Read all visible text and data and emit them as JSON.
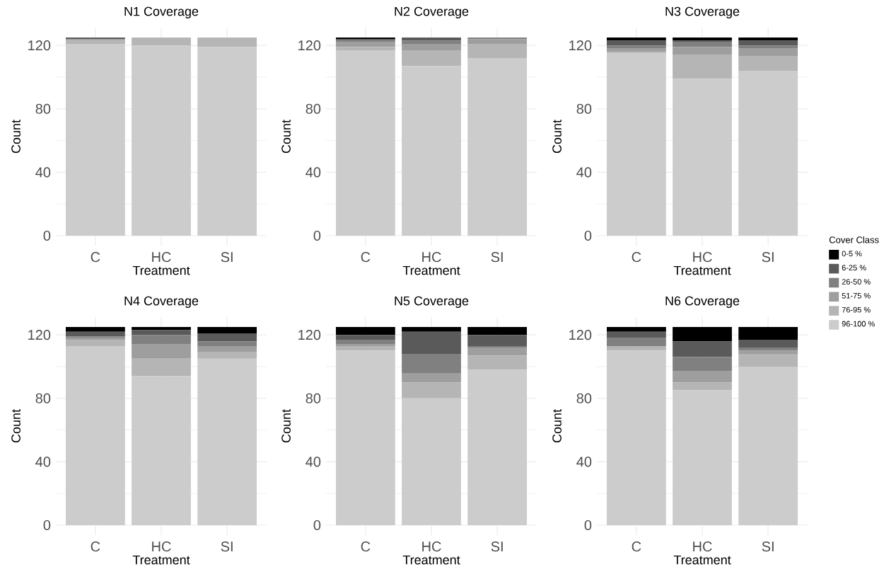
{
  "chart_data": [
    {
      "type": "bar",
      "stacked": true,
      "title": "N1 Coverage",
      "xlabel": "Treatment",
      "ylabel": "Count",
      "categories": [
        "C",
        "HC",
        "SI"
      ],
      "ylim": [
        -6.25,
        131.25
      ],
      "yticks": [
        0,
        40,
        80,
        120
      ],
      "grid": true,
      "series": [
        {
          "color": "#cccccc",
          "values": [
            121,
            120,
            119
          ]
        },
        {
          "color": "#b5b5b5",
          "values": [
            2,
            5,
            6
          ]
        },
        {
          "color": "#9e9e9e",
          "values": [
            1,
            0,
            0
          ]
        },
        {
          "color": "#808080",
          "values": [
            0,
            0,
            0
          ]
        },
        {
          "color": "#5a5a5a",
          "values": [
            1,
            0,
            0
          ]
        },
        {
          "color": "#000000",
          "values": [
            0,
            0,
            0
          ]
        }
      ]
    },
    {
      "type": "bar",
      "stacked": true,
      "title": "N2 Coverage",
      "xlabel": "Treatment",
      "ylabel": "Count",
      "categories": [
        "C",
        "HC",
        "SI"
      ],
      "ylim": [
        -6.25,
        131.25
      ],
      "yticks": [
        0,
        40,
        80,
        120
      ],
      "grid": true,
      "series": [
        {
          "color": "#cccccc",
          "values": [
            117,
            107,
            112
          ]
        },
        {
          "color": "#b5b5b5",
          "values": [
            2,
            10,
            9
          ]
        },
        {
          "color": "#9e9e9e",
          "values": [
            3,
            4,
            3
          ]
        },
        {
          "color": "#808080",
          "values": [
            1,
            2,
            1
          ]
        },
        {
          "color": "#5a5a5a",
          "values": [
            1,
            2,
            0
          ]
        },
        {
          "color": "#000000",
          "values": [
            1,
            0,
            0
          ]
        }
      ]
    },
    {
      "type": "bar",
      "stacked": true,
      "title": "N3 Coverage",
      "xlabel": "Treatment",
      "ylabel": "Count",
      "categories": [
        "C",
        "HC",
        "SI"
      ],
      "ylim": [
        -6.25,
        131.25
      ],
      "yticks": [
        0,
        40,
        80,
        120
      ],
      "grid": true,
      "legend": "right",
      "legend_title": "Cover Class",
      "series": [
        {
          "name": "96-100 %",
          "color": "#cccccc",
          "values": [
            115,
            99,
            104
          ]
        },
        {
          "name": "76-95 %",
          "color": "#b5b5b5",
          "values": [
            1,
            15,
            9
          ]
        },
        {
          "name": "51-75 %",
          "color": "#9e9e9e",
          "values": [
            2,
            5,
            5
          ]
        },
        {
          "name": "26-50 %",
          "color": "#808080",
          "values": [
            2,
            3,
            2
          ]
        },
        {
          "name": "6-25 %",
          "color": "#5a5a5a",
          "values": [
            3,
            1,
            3
          ]
        },
        {
          "name": "0-5 %",
          "color": "#000000",
          "values": [
            2,
            2,
            2
          ]
        }
      ]
    },
    {
      "type": "bar",
      "stacked": true,
      "title": "N4 Coverage",
      "xlabel": "Treatment",
      "ylabel": "Count",
      "categories": [
        "C",
        "HC",
        "SI"
      ],
      "ylim": [
        -6.25,
        131.25
      ],
      "yticks": [
        0,
        40,
        80,
        120
      ],
      "grid": true,
      "series": [
        {
          "color": "#cccccc",
          "values": [
            113,
            94,
            105
          ]
        },
        {
          "color": "#b5b5b5",
          "values": [
            4,
            11,
            4
          ]
        },
        {
          "color": "#9e9e9e",
          "values": [
            1,
            9,
            4
          ]
        },
        {
          "color": "#808080",
          "values": [
            1,
            6,
            3
          ]
        },
        {
          "color": "#5a5a5a",
          "values": [
            3,
            3,
            5
          ]
        },
        {
          "color": "#000000",
          "values": [
            3,
            2,
            4
          ]
        }
      ]
    },
    {
      "type": "bar",
      "stacked": true,
      "title": "N5 Coverage",
      "xlabel": "Treatment",
      "ylabel": "Count",
      "categories": [
        "C",
        "HC",
        "SI"
      ],
      "ylim": [
        -6.25,
        131.25
      ],
      "yticks": [
        0,
        40,
        80,
        120
      ],
      "grid": true,
      "series": [
        {
          "color": "#cccccc",
          "values": [
            110,
            80,
            98
          ]
        },
        {
          "color": "#b5b5b5",
          "values": [
            3,
            10,
            9
          ]
        },
        {
          "color": "#9e9e9e",
          "values": [
            1,
            6,
            5
          ]
        },
        {
          "color": "#808080",
          "values": [
            3,
            12,
            1
          ]
        },
        {
          "color": "#5a5a5a",
          "values": [
            3,
            14,
            7
          ]
        },
        {
          "color": "#000000",
          "values": [
            5,
            3,
            5
          ]
        }
      ]
    },
    {
      "type": "bar",
      "stacked": true,
      "title": "N6 Coverage",
      "xlabel": "Treatment",
      "ylabel": "Count",
      "categories": [
        "C",
        "HC",
        "SI"
      ],
      "ylim": [
        -6.25,
        131.25
      ],
      "yticks": [
        0,
        40,
        80,
        120
      ],
      "grid": true,
      "series": [
        {
          "color": "#cccccc",
          "values": [
            110,
            85,
            100
          ]
        },
        {
          "color": "#b5b5b5",
          "values": [
            3,
            5,
            8
          ]
        },
        {
          "color": "#9e9e9e",
          "values": [
            0,
            7,
            2
          ]
        },
        {
          "color": "#808080",
          "values": [
            5,
            9,
            2
          ]
        },
        {
          "color": "#5a5a5a",
          "values": [
            4,
            10,
            5
          ]
        },
        {
          "color": "#000000",
          "values": [
            3,
            9,
            8
          ]
        }
      ]
    }
  ]
}
